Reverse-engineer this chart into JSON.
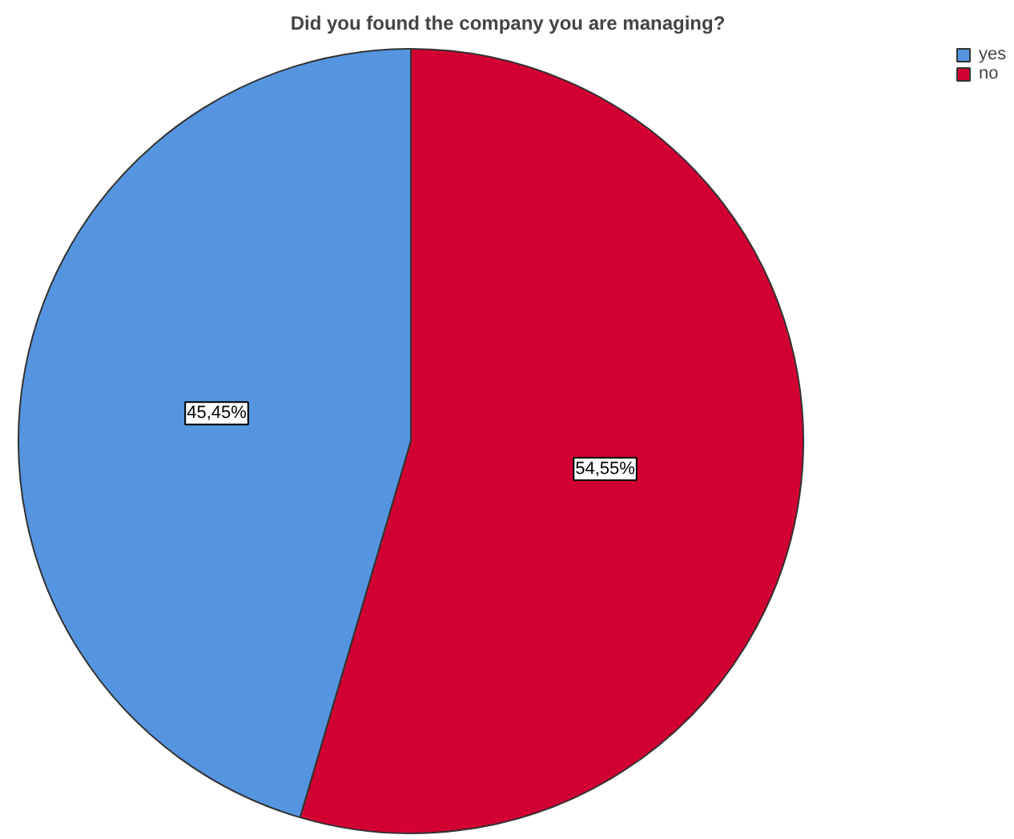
{
  "chart_data": {
    "type": "pie",
    "title": "Did you found the company you are managing?",
    "categories": [
      "yes",
      "no"
    ],
    "values": [
      45.45,
      54.55
    ],
    "colors": [
      "#5595e0",
      "#d20032"
    ],
    "value_labels": [
      "45,45%",
      "54,55%"
    ],
    "legend": "top right"
  }
}
